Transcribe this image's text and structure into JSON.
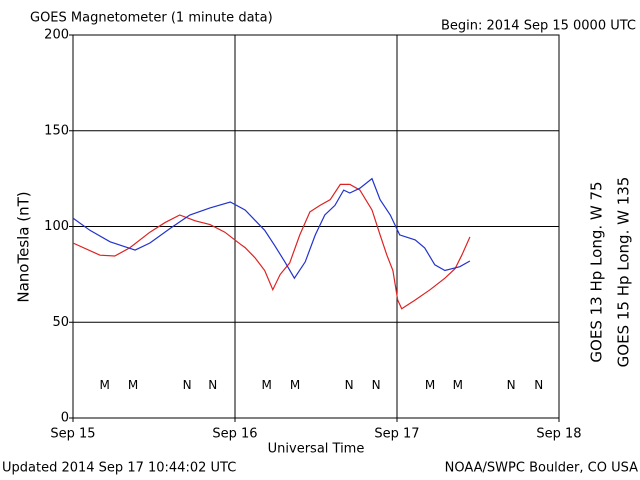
{
  "chart_data": {
    "type": "line",
    "title": "GOES Magnetometer (1 minute data)",
    "subtitle": "Begin:  2014 Sep 15 0000 UTC",
    "ylabel": "NanoTesla (nT)",
    "xlabel": "Universal Time",
    "footer_left": "Updated 2014 Sep 17 10:44:02 UTC",
    "footer_right": "NOAA/SWPC Boulder, CO USA",
    "xlim": [
      0,
      72
    ],
    "xticks": [
      {
        "value": 0,
        "label": "Sep 15"
      },
      {
        "value": 24,
        "label": "Sep 16"
      },
      {
        "value": 48,
        "label": "Sep 17"
      },
      {
        "value": 72,
        "label": "Sep 18"
      }
    ],
    "ylim": [
      0,
      200
    ],
    "yticks": [
      0,
      50,
      100,
      150,
      200
    ],
    "grid": true,
    "series": [
      {
        "name": "GOES 13 Hp  Long. W 75",
        "color": "#dd2222",
        "x": [
          0,
          4,
          6.2,
          8.4,
          11.4,
          13.6,
          15.8,
          18.1,
          20.3,
          22.5,
          24.7,
          25.5,
          27,
          28.4,
          29.6,
          30.7,
          32.1,
          33.6,
          35.1,
          36.6,
          38.1,
          39.6,
          41,
          42.5,
          44.3,
          45.5,
          46.5,
          47.4,
          48.1,
          48.7,
          50.7,
          52.9,
          55.1,
          56.6,
          57.6,
          58.8
        ],
        "values": [
          91.4,
          85,
          84.6,
          88.8,
          97,
          102,
          106,
          103,
          101,
          97,
          91,
          89,
          83.5,
          77,
          67,
          75,
          81,
          95.6,
          107.6,
          111,
          114,
          122,
          122,
          119,
          108.6,
          95.6,
          85,
          77,
          61.6,
          57,
          61.6,
          67,
          73,
          78,
          85,
          94.5
        ]
      },
      {
        "name": "GOES 15 Hp  Long. W 135",
        "color": "#2233cc",
        "x": [
          0,
          2.5,
          5.5,
          9.2,
          11.4,
          14.4,
          17.3,
          20.3,
          23.3,
          25.5,
          28.4,
          29.9,
          31.4,
          32.8,
          34.4,
          35.9,
          37.3,
          38.8,
          40.1,
          41,
          42.5,
          44.3,
          45.5,
          47,
          48.4,
          50.7,
          52.1,
          53.6,
          55.1,
          57.3,
          58.8
        ],
        "values": [
          104.4,
          98,
          92,
          87.7,
          91.4,
          99,
          106,
          109.7,
          112.8,
          108.6,
          98,
          90,
          81.5,
          73,
          81.5,
          95.6,
          106,
          111,
          119,
          117.5,
          120,
          125,
          114,
          106,
          95.6,
          93,
          88.8,
          80,
          77,
          79,
          82
        ]
      }
    ],
    "annotations": [
      {
        "label": "M",
        "x": 4.7,
        "series": 0
      },
      {
        "label": "N",
        "x": 16.9,
        "series": 0
      },
      {
        "label": "M",
        "x": 28.7,
        "series": 0
      },
      {
        "label": "N",
        "x": 40.9,
        "series": 0
      },
      {
        "label": "M",
        "x": 52.9,
        "series": 0
      },
      {
        "label": "N",
        "x": 64.9,
        "series": 0
      },
      {
        "label": "M",
        "x": 8.9,
        "series": 1
      },
      {
        "label": "N",
        "x": 20.7,
        "series": 1
      },
      {
        "label": "M",
        "x": 32.9,
        "series": 1
      },
      {
        "label": "N",
        "x": 44.9,
        "series": 1
      },
      {
        "label": "M",
        "x": 57.0,
        "series": 1
      },
      {
        "label": "N",
        "x": 69.0,
        "series": 1
      }
    ],
    "annotation_value": 17
  }
}
